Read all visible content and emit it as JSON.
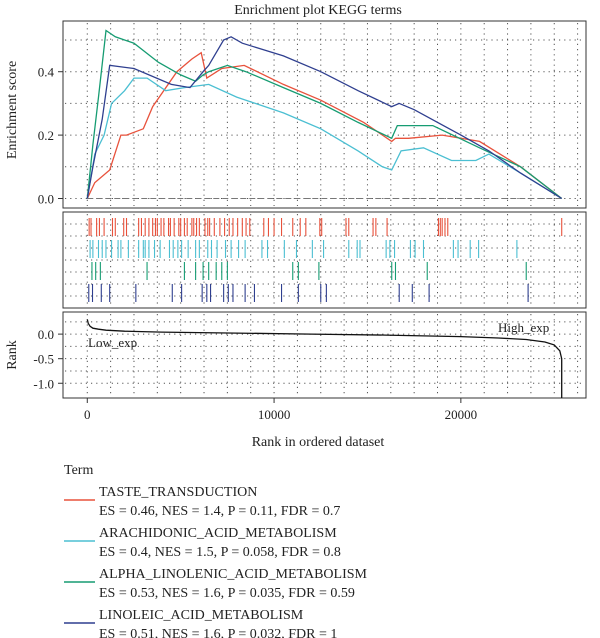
{
  "title": "Enrichment plot KEGG terms",
  "xlabel": "Rank in ordered dataset",
  "legend_title": "Term",
  "colors": {
    "TASTE_TRANSDUCTION": "#e8523c",
    "ARACHIDONIC_ACID_METABOLISM": "#4bbfd2",
    "ALPHA_LINOLENIC_ACID_METABOLISM": "#169c72",
    "LINOLEIC_ACID_METABOLISM": "#2f3f8f"
  },
  "legend": [
    {
      "name": "TASTE_TRANSDUCTION",
      "stats": "ES = 0.46, NES = 1.4, P = 0.11, FDR = 0.7"
    },
    {
      "name": "ARACHIDONIC_ACID_METABOLISM",
      "stats": "ES = 0.4, NES = 1.5, P = 0.058, FDR = 0.8"
    },
    {
      "name": "ALPHA_LINOLENIC_ACID_METABOLISM",
      "stats": "ES = 0.53, NES = 1.6, P = 0.035, FDR = 0.59"
    },
    {
      "name": "LINOLEIC_ACID_METABOLISM",
      "stats": "ES = 0.51, NES = 1.6, P = 0.032, FDR = 1"
    }
  ],
  "chart_data": {
    "type": "line",
    "title": "Enrichment plot KEGG terms",
    "xlabel": "Rank in ordered dataset",
    "xlim": [
      -1300,
      26700
    ],
    "xticks": [
      0,
      10000,
      20000
    ],
    "es_panel": {
      "ylabel": "Enrichment score",
      "ylim": [
        -0.03,
        0.56
      ],
      "yticks": [
        0.0,
        0.2,
        0.4
      ],
      "series": [
        {
          "name": "TASTE_TRANSDUCTION",
          "x": [
            0,
            400,
            1200,
            1800,
            2100,
            3000,
            3500,
            4800,
            5600,
            6100,
            6400,
            7200,
            8400,
            10500,
            12500,
            14800,
            16300,
            16500,
            17200,
            19000,
            21000,
            23200,
            25400
          ],
          "y": [
            0.0,
            0.05,
            0.09,
            0.2,
            0.2,
            0.22,
            0.29,
            0.4,
            0.44,
            0.46,
            0.38,
            0.41,
            0.42,
            0.36,
            0.31,
            0.24,
            0.18,
            0.19,
            0.19,
            0.2,
            0.18,
            0.1,
            0.0
          ]
        },
        {
          "name": "ARACHIDONIC_ACID_METABOLISM",
          "x": [
            0,
            400,
            900,
            1300,
            2000,
            2500,
            3200,
            4200,
            5200,
            6500,
            8000,
            10500,
            12500,
            14500,
            15800,
            16300,
            16800,
            18000,
            19500,
            20800,
            21500,
            23200,
            25400
          ],
          "y": [
            0.0,
            0.14,
            0.2,
            0.3,
            0.34,
            0.38,
            0.38,
            0.34,
            0.35,
            0.36,
            0.32,
            0.27,
            0.22,
            0.15,
            0.1,
            0.09,
            0.15,
            0.16,
            0.12,
            0.12,
            0.14,
            0.08,
            0.0
          ]
        },
        {
          "name": "ALPHA_LINOLENIC_ACID_METABOLISM",
          "x": [
            0,
            300,
            600,
            1000,
            1500,
            2500,
            3800,
            5000,
            5800,
            6200,
            6500,
            7500,
            8500,
            10500,
            12500,
            14500,
            16300,
            16600,
            18500,
            21000,
            23200,
            25400
          ],
          "y": [
            0.0,
            0.17,
            0.32,
            0.53,
            0.51,
            0.49,
            0.43,
            0.39,
            0.37,
            0.39,
            0.4,
            0.42,
            0.4,
            0.35,
            0.3,
            0.24,
            0.19,
            0.23,
            0.23,
            0.16,
            0.1,
            0.0
          ]
        },
        {
          "name": "LINOLEIC_ACID_METABOLISM",
          "x": [
            0,
            300,
            800,
            1200,
            2500,
            4500,
            5500,
            6200,
            6500,
            7300,
            7700,
            8300,
            10500,
            12500,
            14500,
            16300,
            16700,
            17500,
            20000,
            21500,
            23200,
            25400
          ],
          "y": [
            0.0,
            0.1,
            0.25,
            0.42,
            0.41,
            0.36,
            0.35,
            0.4,
            0.42,
            0.5,
            0.51,
            0.49,
            0.45,
            0.4,
            0.34,
            0.29,
            0.3,
            0.28,
            0.2,
            0.15,
            0.08,
            0.0
          ]
        }
      ]
    },
    "hits": [
      {
        "name": "TASTE_TRANSDUCTION",
        "x": [
          100,
          200,
          500,
          650,
          900,
          1350,
          1500,
          1950,
          2100,
          2750,
          2900,
          3100,
          3300,
          3500,
          3650,
          3750,
          3950,
          4100,
          4350,
          4450,
          4650,
          4900,
          5000,
          5200,
          5350,
          5600,
          5700,
          5850,
          6000,
          6300,
          6450,
          6550,
          6800,
          7100,
          7350,
          7600,
          7800,
          8050,
          8300,
          8500,
          8700,
          9450,
          9700,
          10000,
          10400,
          11000,
          11400,
          11700,
          12450,
          12550,
          13850,
          14000,
          15300,
          15450,
          16050,
          18800,
          18900,
          19000,
          19150,
          19300,
          25400
        ]
      },
      {
        "name": "ARACHIDONIC_ACID_METABOLISM",
        "x": [
          150,
          300,
          600,
          800,
          1000,
          1300,
          1650,
          1800,
          2200,
          2750,
          3000,
          3100,
          3300,
          3600,
          3900,
          4400,
          4600,
          4850,
          5050,
          5400,
          5800,
          6000,
          6450,
          6650,
          6950,
          7400,
          7700,
          8100,
          8450,
          9350,
          9650,
          10550,
          11200,
          12050,
          12650,
          14000,
          14450,
          14600,
          16000,
          16200,
          16450,
          17300,
          17550,
          18000,
          19600,
          19850,
          20500,
          20950,
          23000
        ]
      },
      {
        "name": "ALPHA_LINOLENIC_ACID_METABOLISM",
        "x": [
          250,
          450,
          700,
          3200,
          5200,
          5800,
          6200,
          6500,
          6900,
          7200,
          7500,
          11000,
          11300,
          12400,
          16300,
          16500,
          18200,
          23500
        ]
      },
      {
        "name": "LINOLEIC_ACID_METABOLISM",
        "x": [
          80,
          280,
          750,
          1200,
          2600,
          4550,
          5050,
          6150,
          6400,
          6600,
          7300,
          7550,
          7800,
          8450,
          8950,
          10400,
          11300,
          12500,
          12800,
          16700,
          17400,
          18300,
          23600
        ]
      }
    ],
    "rank_panel": {
      "ylabel": "Rank",
      "ylim": [
        -1.3,
        0.45
      ],
      "yticks": [
        0.0,
        -0.5,
        -1.0
      ],
      "yticklabels": [
        "0.0",
        "-0.5",
        "-1.0"
      ],
      "ticks_shown": [
        "0.0",
        "0.0",
        "-0.5",
        "-1.0"
      ],
      "annotations": {
        "low": "Low_exp",
        "high": "High_exp"
      },
      "x": [
        0,
        50,
        150,
        300,
        600,
        1000,
        2000,
        4000,
        8000,
        12000,
        16000,
        20000,
        22000,
        23500,
        24500,
        25000,
        25300,
        25400,
        25400
      ],
      "y": [
        0.3,
        0.22,
        0.16,
        0.12,
        0.1,
        0.08,
        0.06,
        0.04,
        0.02,
        0.0,
        -0.02,
        -0.05,
        -0.08,
        -0.11,
        -0.16,
        -0.22,
        -0.34,
        -0.5,
        -1.3
      ]
    }
  }
}
